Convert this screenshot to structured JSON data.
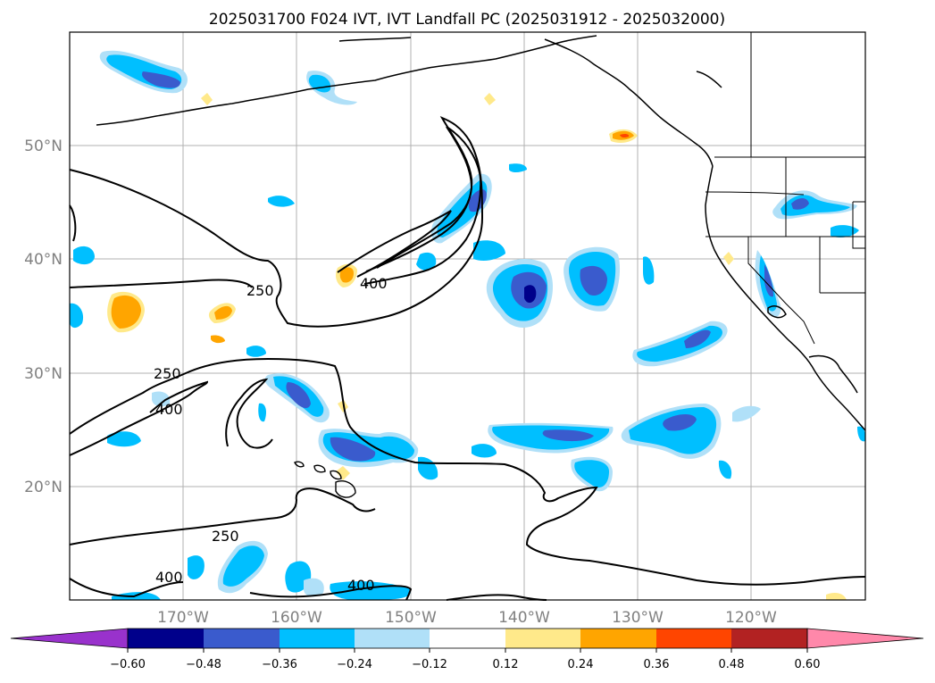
{
  "title": "2025031700 F024 IVT, IVT Landfall PC (2025031912 - 2025032000)",
  "lat_labels": [
    "50°N",
    "40°N",
    "30°N",
    "20°N"
  ],
  "lon_labels": [
    "170°W",
    "160°W",
    "150°W",
    "140°W",
    "130°W",
    "120°W"
  ],
  "contour_labels": [
    "250",
    "400",
    "250",
    "400",
    "250",
    "400",
    "400"
  ],
  "colorbar": {
    "ticks": [
      "−0.60",
      "−0.48",
      "−0.36",
      "−0.24",
      "−0.12",
      "0.12",
      "0.24",
      "0.36",
      "0.48",
      "0.60"
    ],
    "colors": [
      "#9932cc",
      "#00008b",
      "#3a5bcd",
      "#00bfff",
      "#b0e0f8",
      "#ffffff",
      "#ffe98a",
      "#ffa500",
      "#ff4500",
      "#b22222",
      "#ff88aa"
    ]
  },
  "map": {
    "extent": {
      "lon_min": -180,
      "lon_max": -110,
      "lat_min": 10,
      "lat_max": 60
    },
    "gridlines": true,
    "contour_levels": [
      250,
      400
    ]
  }
}
